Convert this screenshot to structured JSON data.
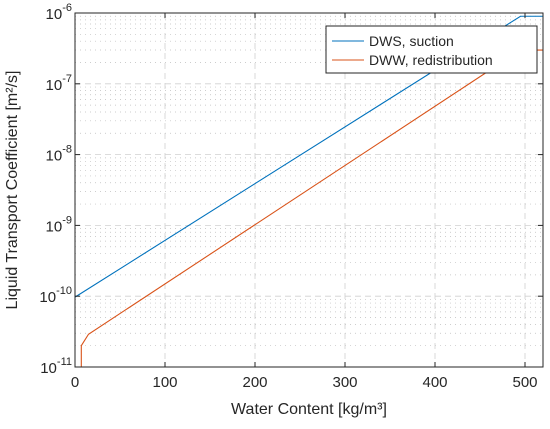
{
  "chart_data": {
    "type": "line",
    "xlabel": "Water Content [kg/m³]",
    "ylabel": "Liquid Transport Coefficient [m²/s]",
    "x_scale": "linear",
    "y_scale": "log",
    "xlim": [
      0,
      520
    ],
    "ylim": [
      1e-11,
      1e-06
    ],
    "x_ticks": [
      0,
      100,
      200,
      300,
      400,
      500
    ],
    "x_tick_labels": [
      "0",
      "100",
      "200",
      "300",
      "400",
      "500"
    ],
    "y_ticks": [
      1e-11,
      1e-10,
      1e-09,
      1e-08,
      1e-07,
      1e-06
    ],
    "y_tick_labels": [
      {
        "base": "10",
        "exp": "-11"
      },
      {
        "base": "10",
        "exp": "-10"
      },
      {
        "base": "10",
        "exp": "-9"
      },
      {
        "base": "10",
        "exp": "-8"
      },
      {
        "base": "10",
        "exp": "-7"
      },
      {
        "base": "10",
        "exp": "-6"
      }
    ],
    "grid": true,
    "minor_grid": true,
    "legend_position": "top-right",
    "series": [
      {
        "name": "DWS, suction",
        "color": "#0072BD",
        "points": [
          [
            0,
            9.7e-11
          ],
          [
            495,
            9e-07
          ],
          [
            520,
            9e-07
          ]
        ]
      },
      {
        "name": "DWW, redistribution",
        "color": "#D95319",
        "points": [
          [
            7,
            1e-11
          ],
          [
            7,
            2e-11
          ],
          [
            15,
            2.9e-11
          ],
          [
            495,
            3e-07
          ],
          [
            520,
            3e-07
          ]
        ]
      }
    ]
  }
}
